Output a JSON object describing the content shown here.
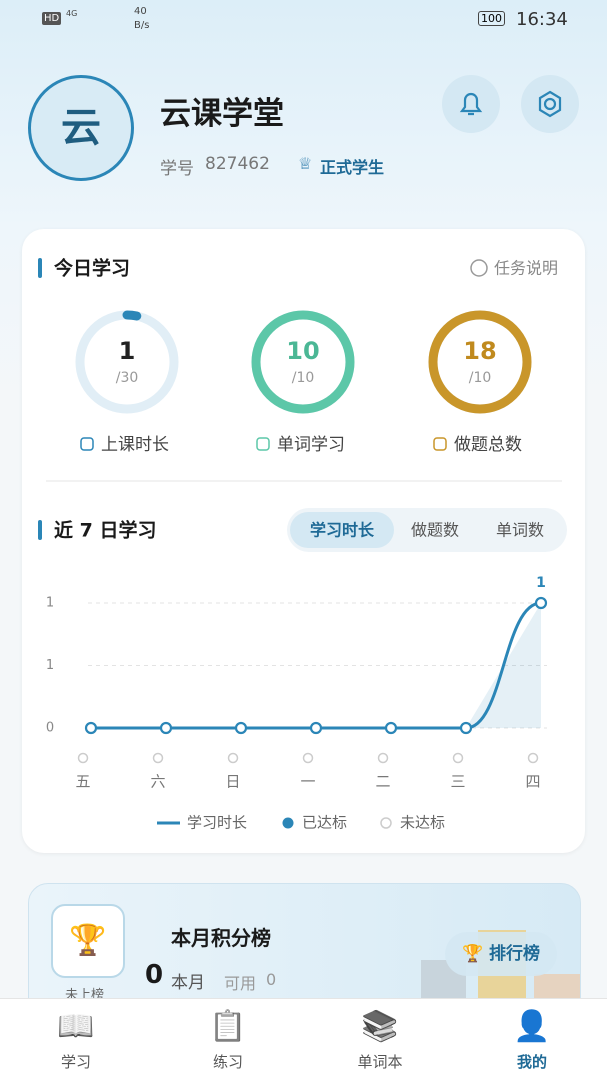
{
  "status_bar": {
    "hd": "HD",
    "network": "4G",
    "speed": "40",
    "speed_unit": "B/s",
    "battery": "100",
    "time": "16:34"
  },
  "profile": {
    "avatar": "云",
    "name": "云课学堂",
    "id_label": "学号",
    "id": "827462",
    "badge": "正式学生"
  },
  "today": {
    "title": "今日学习",
    "help": "任务说明",
    "rings": [
      {
        "value": 1,
        "goal": 30,
        "goal_label": "/30",
        "label": "上课时长",
        "color": "#2b86b7",
        "text_color": "#222"
      },
      {
        "value": 10,
        "goal": 10,
        "goal_label": "/10",
        "label": "单词学习",
        "color": "#5cc7a8",
        "text_color": "#4bb795"
      },
      {
        "value": 18,
        "goal": 10,
        "goal_label": "/10",
        "label": "做题总数",
        "color": "#c9962a",
        "text_color": "#c08a1e"
      }
    ]
  },
  "weekly": {
    "title": "近 7 日学习",
    "tabs": [
      "学习时长",
      "做题数",
      "单词数"
    ],
    "active_tab": 0,
    "chart": {
      "type": "line",
      "categories": [
        "五",
        "六",
        "日",
        "一",
        "二",
        "三",
        "四"
      ],
      "series": [
        {
          "name": "学习时长",
          "color": "#2b86b7",
          "values": [
            0,
            0,
            0,
            0,
            0,
            0,
            1
          ],
          "value_labels": [
            null,
            null,
            null,
            null,
            null,
            null,
            "1"
          ]
        }
      ],
      "ylim": [
        0,
        1
      ],
      "yticks": [
        0,
        {
          "value": 0.5,
          "label": "1"
        },
        1
      ],
      "grid": true,
      "met": [
        false,
        false,
        false,
        false,
        false,
        false,
        false
      ],
      "status_legend": [
        "已达标",
        "未达标"
      ]
    }
  },
  "rank": {
    "title": "本月积分榜",
    "points": 0,
    "points_label": "本月",
    "available_label": "可用",
    "available": 0,
    "button": "排行榜",
    "trophy_label": "未上榜"
  },
  "nav": {
    "items": [
      "学习",
      "练习",
      "单词本",
      "我的"
    ],
    "active": 3
  }
}
